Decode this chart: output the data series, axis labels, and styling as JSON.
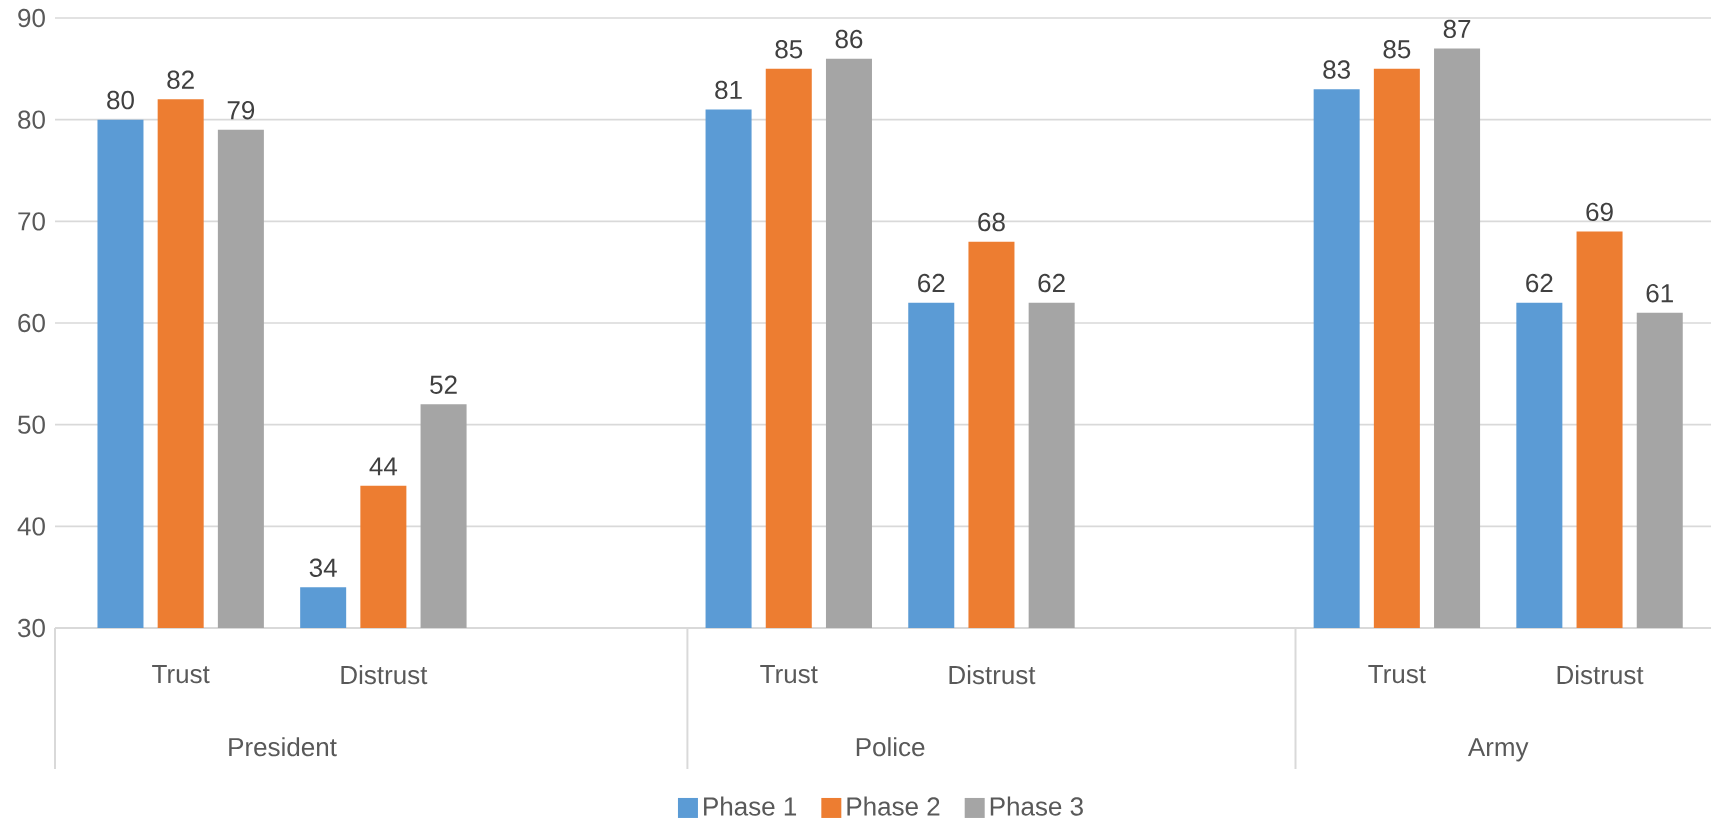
{
  "chart_data": {
    "type": "bar",
    "categories": [
      "Trust",
      "Distrust",
      null,
      "Trust",
      "Distrust",
      null,
      "Trust",
      "Distrust"
    ],
    "series": [
      {
        "name": "Phase 1",
        "color": "#5b9bd5",
        "values": [
          80,
          34,
          null,
          81,
          62,
          null,
          83,
          62
        ]
      },
      {
        "name": "Phase 2",
        "color": "#ed7d31",
        "values": [
          82,
          44,
          null,
          85,
          68,
          null,
          85,
          69
        ]
      },
      {
        "name": "Phase 3",
        "color": "#a5a5a5",
        "values": [
          79,
          52,
          null,
          86,
          62,
          null,
          87,
          61
        ]
      }
    ],
    "annotations": [
      "President",
      "Police",
      "Army"
    ],
    "ylim": [
      30,
      90
    ],
    "yticks": [
      30,
      40,
      50,
      60,
      70,
      80,
      90
    ],
    "data_labels": true,
    "grid": "y",
    "legend": "bottom"
  }
}
